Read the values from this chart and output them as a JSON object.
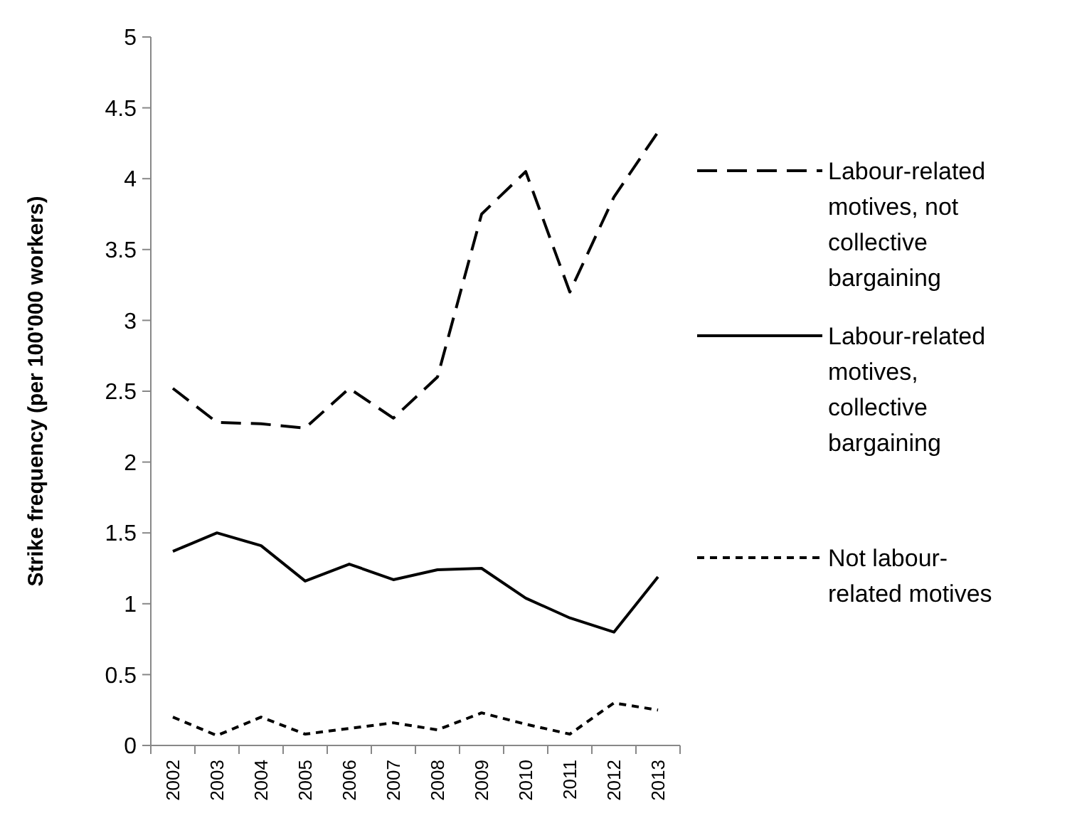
{
  "chart_data": {
    "type": "line",
    "ylabel": "Strike frequency (per 100'000 workers)",
    "categories": [
      "2002",
      "2003",
      "2004",
      "2005",
      "2006",
      "2007",
      "2008",
      "2009",
      "2010",
      "2011",
      "2012",
      "2013"
    ],
    "series": [
      {
        "name": "Labour-related motives, not collective bargaining",
        "color": "#000000",
        "line_style": "dashed",
        "values": [
          2.52,
          2.28,
          2.27,
          2.24,
          2.52,
          2.31,
          2.6,
          3.75,
          4.05,
          3.2,
          3.87,
          4.33
        ]
      },
      {
        "name": "Labour-related motives, collective bargaining",
        "color": "#000000",
        "line_style": "solid",
        "values": [
          1.37,
          1.5,
          1.41,
          1.16,
          1.28,
          1.17,
          1.24,
          1.25,
          1.04,
          0.9,
          0.8,
          1.19
        ]
      },
      {
        "name": "Not labour-related motives",
        "color": "#000000",
        "line_style": "dotted",
        "values": [
          0.2,
          0.07,
          0.2,
          0.08,
          0.12,
          0.16,
          0.11,
          0.23,
          0.15,
          0.08,
          0.3,
          0.25
        ]
      }
    ],
    "ylim": [
      0,
      5
    ],
    "yticks": [
      0,
      0.5,
      1,
      1.5,
      2,
      2.5,
      3,
      3.5,
      4,
      4.5,
      5
    ],
    "grid": false,
    "legend": "right",
    "marker": "none"
  }
}
